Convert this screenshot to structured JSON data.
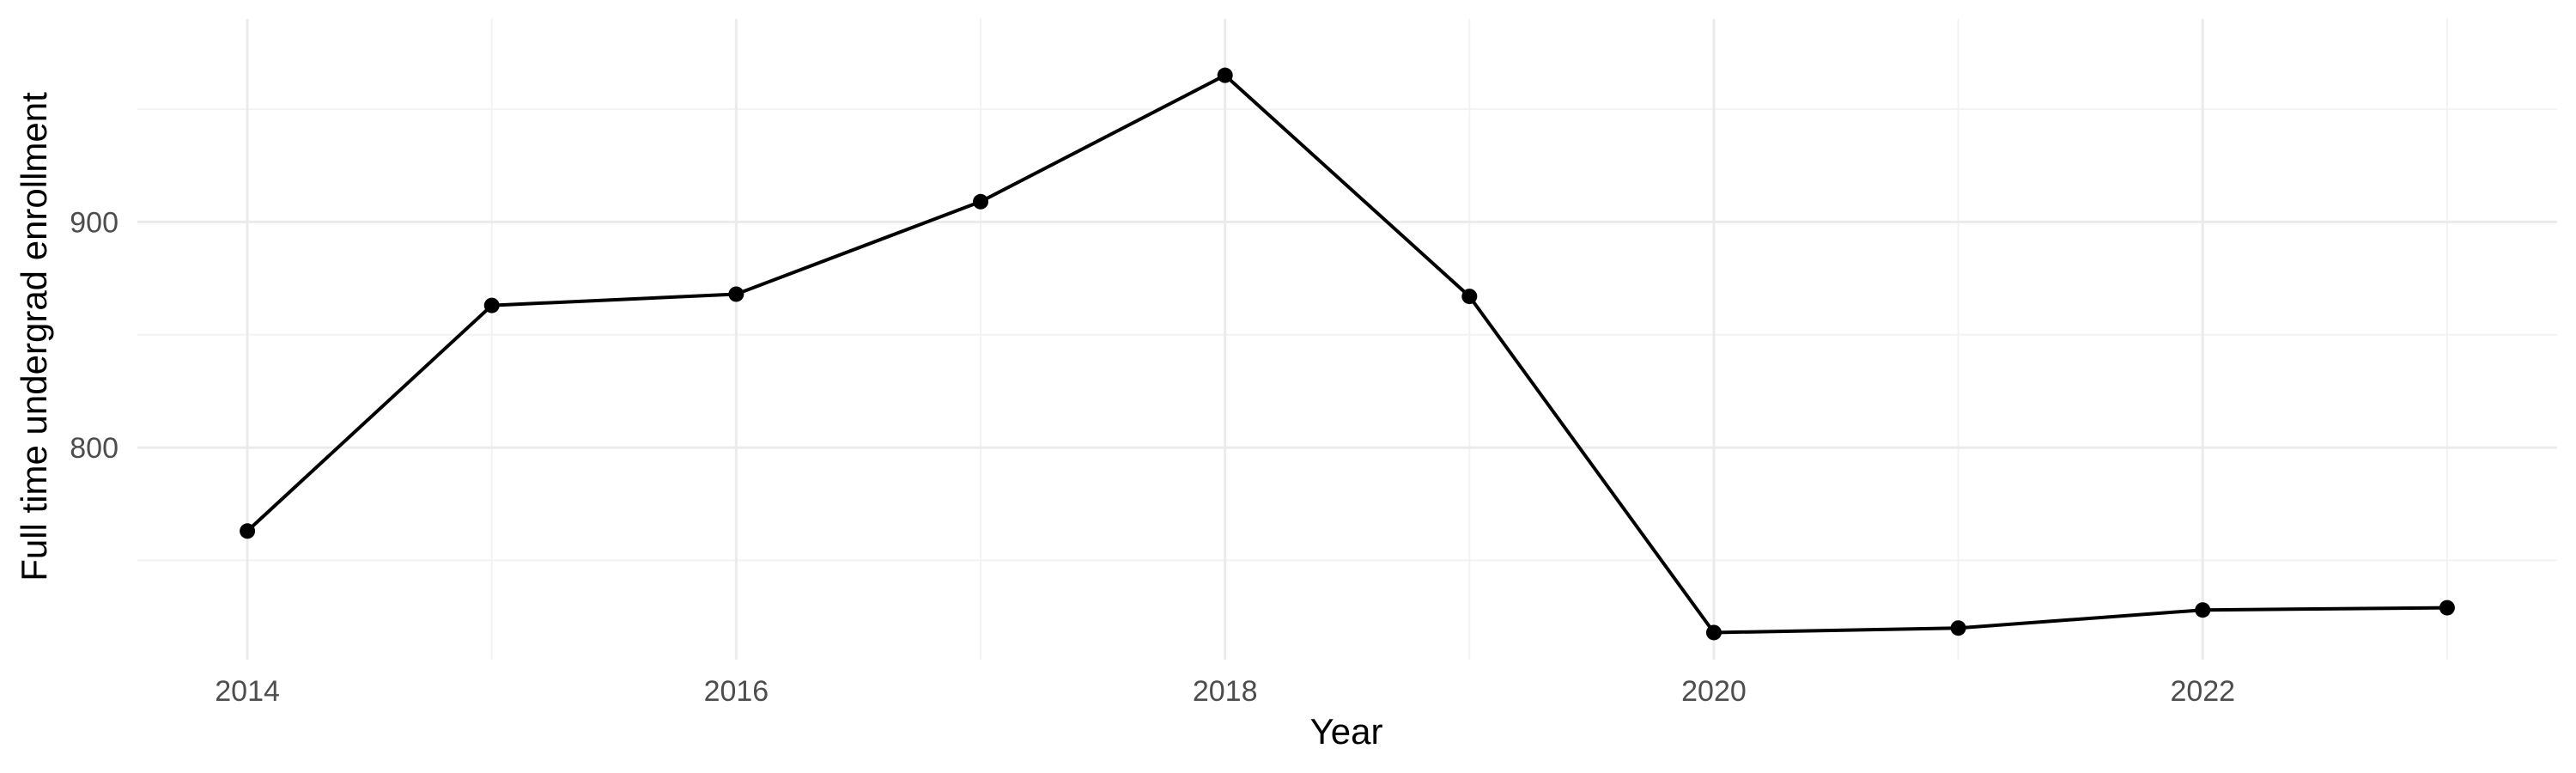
{
  "chart_data": {
    "type": "line",
    "title": "",
    "xlabel": "Year",
    "ylabel": "Full time undergrad enrollment",
    "x": [
      2014,
      2015,
      2016,
      2017,
      2018,
      2019,
      2020,
      2021,
      2022,
      2023
    ],
    "series": [
      {
        "values": [
          763,
          863,
          868,
          909,
          965,
          867,
          718,
          720,
          728,
          729
        ]
      }
    ],
    "xlim": [
      2013.55,
      2023.45
    ],
    "ylim": [
      706,
      990
    ],
    "x_ticks": [
      2014,
      2016,
      2018,
      2020,
      2022
    ],
    "x_tick_labels": [
      "2014",
      "2016",
      "2018",
      "2020",
      "2022"
    ],
    "x_minor_ticks": [
      2015,
      2017,
      2019,
      2021,
      2023
    ],
    "y_ticks": [
      800,
      900
    ],
    "y_tick_labels": [
      "800",
      "900"
    ],
    "y_minor_ticks": [
      750,
      850,
      950
    ],
    "grid": true,
    "legend": "none",
    "colors": {
      "line": "#000000",
      "point": "#000000",
      "background": "#ffffff"
    }
  }
}
